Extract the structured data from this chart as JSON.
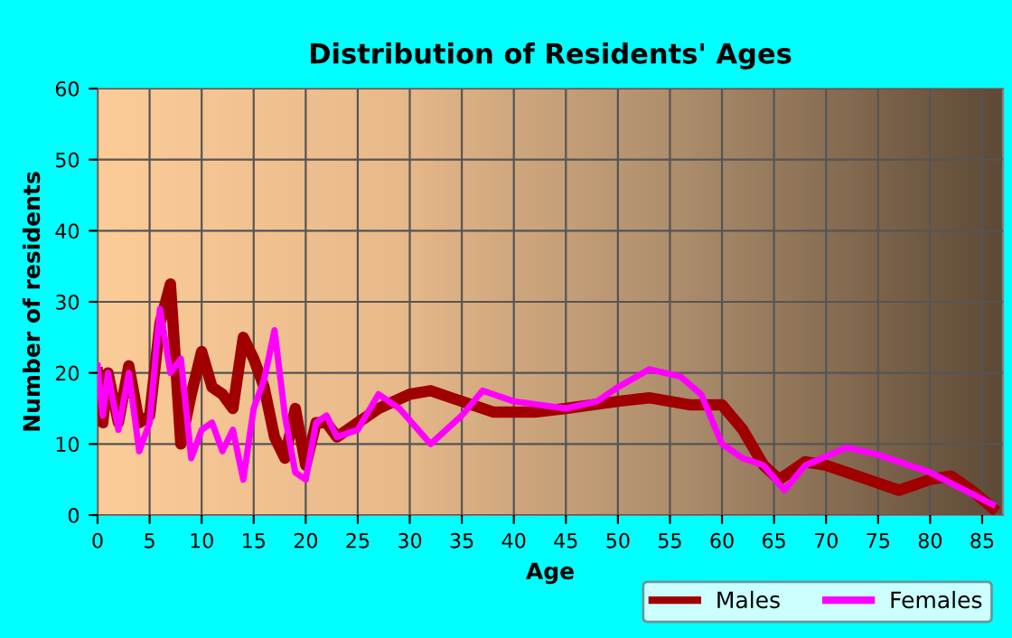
{
  "chart_data": {
    "type": "line",
    "title": "Distribution of Residents' Ages",
    "xlabel": "Age",
    "ylabel": "Number of residents",
    "xlim": [
      0,
      87
    ],
    "xticks": [
      0,
      5,
      10,
      15,
      20,
      25,
      30,
      35,
      40,
      45,
      50,
      55,
      60,
      65,
      70,
      75,
      80,
      85
    ],
    "ylim": [
      0,
      60
    ],
    "yticks": [
      0,
      10,
      20,
      30,
      40,
      50,
      60
    ],
    "grid": true,
    "legend": "bottom right",
    "marker": "none",
    "line_style": "solid",
    "series": [
      {
        "name": "Males",
        "color": "#a00000",
        "x": [
          0,
          0.5,
          1,
          2,
          3,
          4,
          5,
          6,
          7,
          8,
          9,
          10,
          11,
          12,
          13,
          14,
          15,
          16,
          17,
          18,
          19,
          20,
          21,
          22,
          23,
          24,
          25,
          27,
          30,
          32,
          35,
          38,
          42,
          45,
          50,
          53,
          57,
          60,
          62,
          64,
          65.5,
          68,
          70,
          74,
          77,
          80,
          82,
          84,
          86
        ],
        "values": [
          20,
          13,
          20,
          13,
          21,
          13,
          14,
          27,
          32.5,
          10,
          17,
          23,
          18,
          17,
          15,
          25,
          22,
          18,
          11,
          8,
          15,
          7,
          13,
          13,
          11,
          12,
          13,
          15,
          17,
          17.5,
          16,
          14.5,
          14.5,
          15,
          16,
          16.5,
          15.5,
          15.5,
          12,
          7,
          5,
          7.5,
          7,
          5,
          3.5,
          5,
          5.5,
          3.5,
          1
        ]
      },
      {
        "name": "Females",
        "color": "#ff00ff",
        "x": [
          0,
          0.5,
          1,
          2,
          3,
          4,
          5,
          6,
          7,
          8,
          9,
          10,
          11,
          12,
          13,
          14,
          15,
          16,
          17,
          18,
          19,
          20,
          21,
          22,
          23,
          25,
          27,
          29,
          32,
          35,
          37,
          40,
          45,
          48,
          50,
          53,
          56,
          58,
          60,
          62,
          64,
          66,
          68,
          72,
          75,
          80,
          84,
          86
        ],
        "values": [
          21,
          14,
          20,
          12,
          20,
          9,
          13,
          29,
          20,
          22,
          8,
          12,
          13,
          9,
          12,
          5,
          15,
          19,
          26,
          14,
          6,
          5,
          13,
          14,
          11,
          12,
          17,
          15,
          10,
          14,
          17.5,
          16,
          15,
          16,
          18,
          20.5,
          19.5,
          17,
          10,
          8,
          7,
          3.5,
          7,
          9.5,
          8.5,
          6,
          3,
          1.5
        ]
      }
    ]
  }
}
